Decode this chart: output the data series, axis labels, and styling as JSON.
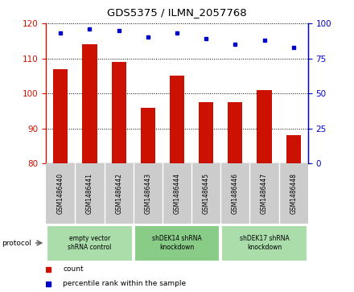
{
  "title": "GDS5375 / ILMN_2057768",
  "samples": [
    "GSM1486440",
    "GSM1486441",
    "GSM1486442",
    "GSM1486443",
    "GSM1486444",
    "GSM1486445",
    "GSM1486446",
    "GSM1486447",
    "GSM1486448"
  ],
  "count_values": [
    107,
    114,
    109,
    96,
    105,
    97.5,
    97.5,
    101,
    88
  ],
  "percentile_values": [
    93,
    96,
    95,
    90,
    93,
    89,
    85,
    88,
    83
  ],
  "ylim_left": [
    80,
    120
  ],
  "ylim_right": [
    0,
    100
  ],
  "yticks_left": [
    80,
    90,
    100,
    110,
    120
  ],
  "yticks_right": [
    0,
    25,
    50,
    75,
    100
  ],
  "bar_color": "#CC1100",
  "dot_color": "#0000CC",
  "bg_plot": "#FFFFFF",
  "bg_xtick": "#CCCCCC",
  "groups": [
    {
      "label": "empty vector\nshRNA control",
      "start": 0,
      "end": 3,
      "color": "#AADDAA"
    },
    {
      "label": "shDEK14 shRNA\nknockdown",
      "start": 3,
      "end": 6,
      "color": "#88CC88"
    },
    {
      "label": "shDEK17 shRNA\nknockdown",
      "start": 6,
      "end": 9,
      "color": "#AADDAA"
    }
  ],
  "legend_items": [
    {
      "label": "count",
      "color": "#CC1100"
    },
    {
      "label": "percentile rank within the sample",
      "color": "#0000CC"
    }
  ],
  "protocol_label": "protocol",
  "bar_width": 0.5
}
